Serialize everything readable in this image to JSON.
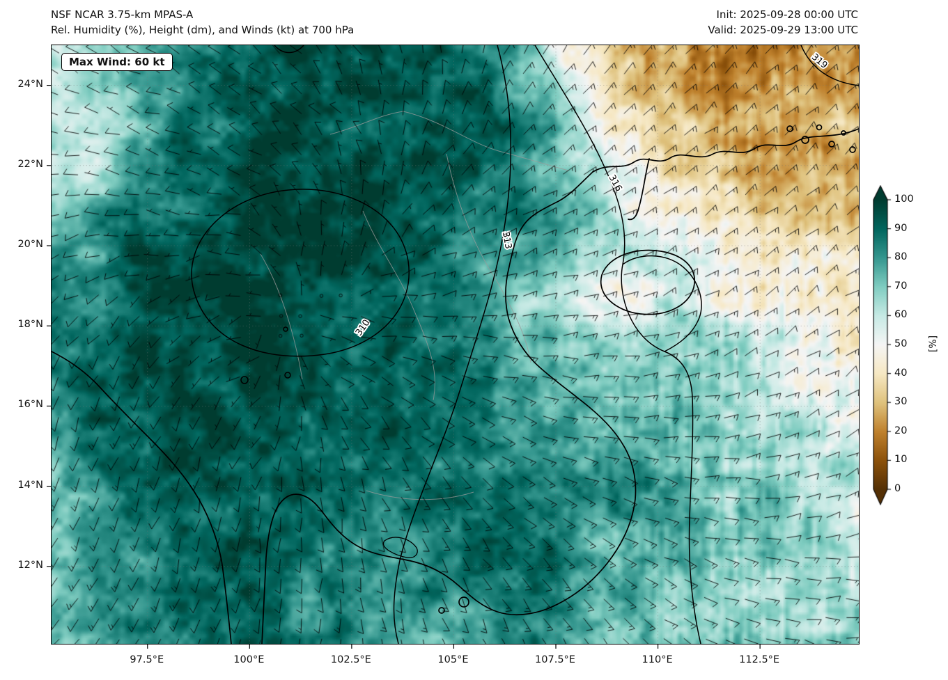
{
  "header": {
    "title_line1": "NSF NCAR 3.75-km MPAS-A",
    "title_line2": "Rel. Humidity (%), Height (dm), and Winds (kt) at 700 hPa",
    "init_label": "Init: 2025-09-28 00:00 UTC",
    "valid_label": "Valid: 2025-09-29 13:00 UTC"
  },
  "map": {
    "max_wind_label": "Max Wind: 60 kt",
    "contour_labels": [
      "310",
      "313",
      "316",
      "319"
    ]
  },
  "colorbar": {
    "label": "[%]"
  },
  "chart_data": {
    "type": "heatmap",
    "title": "NSF NCAR 3.75-km MPAS-A",
    "subtitle": "Rel. Humidity (%), Height (dm), and Winds (kt) at 700 hPa",
    "init_time": "2025-09-28 00:00 UTC",
    "valid_time": "2025-09-29 13:00 UTC",
    "level_hpa": 700,
    "max_wind_kt": 60,
    "bounds": {
      "lon_min": 95.15,
      "lon_max": 114.92,
      "lat_min": 10.07,
      "lat_max": 25.0
    },
    "x_ticks": [
      {
        "lon": 97.5,
        "label": "97.5°E"
      },
      {
        "lon": 100,
        "label": "100°E"
      },
      {
        "lon": 102.5,
        "label": "102.5°E"
      },
      {
        "lon": 105,
        "label": "105°E"
      },
      {
        "lon": 107.5,
        "label": "107.5°E"
      },
      {
        "lon": 110,
        "label": "110°E"
      },
      {
        "lon": 112.5,
        "label": "112.5°E"
      }
    ],
    "y_ticks": [
      {
        "lat": 24,
        "label": "24°N"
      },
      {
        "lat": 22,
        "label": "22°N"
      },
      {
        "lat": 20,
        "label": "20°N"
      },
      {
        "lat": 18,
        "label": "18°N"
      },
      {
        "lat": 16,
        "label": "16°N"
      },
      {
        "lat": 14,
        "label": "14°N"
      },
      {
        "lat": 12,
        "label": "12°N"
      }
    ],
    "colorbar": {
      "label": "[%]",
      "ticks": [
        100,
        90,
        80,
        70,
        60,
        50,
        40,
        30,
        20,
        10,
        0
      ],
      "range": [
        0,
        100
      ],
      "extend": "both",
      "colormap_stops": [
        [
          0.0,
          "#543005"
        ],
        [
          0.1,
          "#8c510a"
        ],
        [
          0.2,
          "#bf812d"
        ],
        [
          0.3,
          "#dfc27d"
        ],
        [
          0.4,
          "#f6e8c3"
        ],
        [
          0.5,
          "#f5f5f5"
        ],
        [
          0.6,
          "#c7eae5"
        ],
        [
          0.7,
          "#80cdc1"
        ],
        [
          0.8,
          "#35978f"
        ],
        [
          0.9,
          "#01665e"
        ],
        [
          1.0,
          "#003c30"
        ]
      ]
    },
    "height_contours_dm": [
      310,
      313,
      316,
      319
    ],
    "humidity_grid": {
      "units": "%",
      "lon_start": 95,
      "lon_step": 1,
      "lat_start": 25,
      "lat_step": -1,
      "values": [
        [
          60,
          66,
          74,
          80,
          88,
          92,
          95,
          96,
          95,
          93,
          90,
          85,
          70,
          50,
          35,
          26,
          20,
          18,
          20,
          22,
          24
        ],
        [
          55,
          60,
          70,
          82,
          90,
          94,
          96,
          96,
          95,
          94,
          92,
          88,
          75,
          55,
          38,
          28,
          22,
          20,
          22,
          25,
          28
        ],
        [
          58,
          55,
          65,
          80,
          90,
          95,
          96,
          95,
          94,
          93,
          92,
          90,
          80,
          62,
          45,
          32,
          25,
          22,
          25,
          28,
          30
        ],
        [
          65,
          60,
          70,
          85,
          92,
          96,
          96,
          95,
          94,
          92,
          90,
          88,
          82,
          70,
          55,
          40,
          30,
          26,
          28,
          30,
          32
        ],
        [
          75,
          72,
          80,
          90,
          95,
          97,
          97,
          96,
          95,
          92,
          88,
          85,
          80,
          72,
          62,
          50,
          40,
          34,
          32,
          33,
          35
        ],
        [
          82,
          80,
          88,
          94,
          97,
          98,
          98,
          97,
          95,
          92,
          88,
          82,
          75,
          68,
          60,
          55,
          48,
          43,
          40,
          38,
          38
        ],
        [
          85,
          85,
          92,
          96,
          98,
          98,
          98,
          97,
          94,
          90,
          85,
          78,
          68,
          58,
          52,
          55,
          55,
          50,
          45,
          42,
          40
        ],
        [
          88,
          88,
          94,
          97,
          98,
          98,
          97,
          95,
          92,
          88,
          84,
          78,
          70,
          60,
          55,
          60,
          62,
          58,
          52,
          48,
          45
        ],
        [
          85,
          90,
          95,
          97,
          97,
          96,
          95,
          93,
          90,
          88,
          85,
          82,
          78,
          72,
          68,
          68,
          68,
          62,
          58,
          52,
          48
        ],
        [
          80,
          88,
          93,
          95,
          95,
          94,
          93,
          92,
          90,
          88,
          86,
          84,
          82,
          78,
          72,
          70,
          70,
          66,
          62,
          56,
          52
        ],
        [
          78,
          85,
          90,
          92,
          93,
          92,
          92,
          91,
          90,
          89,
          87,
          85,
          83,
          80,
          75,
          72,
          70,
          68,
          64,
          60,
          55
        ],
        [
          75,
          82,
          88,
          90,
          91,
          91,
          91,
          90,
          90,
          89,
          88,
          86,
          84,
          82,
          80,
          76,
          72,
          70,
          66,
          62,
          58
        ],
        [
          72,
          80,
          86,
          89,
          90,
          90,
          90,
          89,
          88,
          87,
          86,
          85,
          84,
          80,
          76,
          74,
          72,
          70,
          68,
          64,
          60
        ],
        [
          70,
          78,
          84,
          88,
          89,
          89,
          88,
          87,
          85,
          84,
          82,
          83,
          84,
          80,
          74,
          72,
          70,
          68,
          66,
          64,
          62
        ],
        [
          68,
          76,
          82,
          86,
          88,
          88,
          87,
          85,
          82,
          80,
          78,
          80,
          84,
          82,
          76,
          72,
          70,
          68,
          66,
          64,
          62
        ],
        [
          66,
          74,
          80,
          84,
          86,
          87,
          86,
          84,
          80,
          78,
          76,
          78,
          82,
          82,
          78,
          74,
          72,
          70,
          68,
          66,
          64
        ]
      ]
    },
    "wind_grid": {
      "units": "kt",
      "lon_start": 95,
      "lon_step": 2.5,
      "lat_start": 25,
      "lat_step": -2.5,
      "dir_from_deg": [
        [
          300,
          300,
          310,
          330,
          10,
          30,
          40,
          45,
          45
        ],
        [
          280,
          290,
          300,
          340,
          30,
          50,
          50,
          50,
          48
        ],
        [
          250,
          260,
          290,
          20,
          60,
          70,
          60,
          55,
          50
        ],
        [
          210,
          220,
          250,
          120,
          100,
          90,
          75,
          60,
          55
        ],
        [
          200,
          200,
          210,
          160,
          130,
          110,
          95,
          75,
          65
        ],
        [
          210,
          200,
          190,
          170,
          150,
          130,
          115,
          95,
          80
        ],
        [
          220,
          210,
          200,
          180,
          160,
          150,
          130,
          110,
          95
        ]
      ],
      "speed_kt": [
        [
          12,
          10,
          10,
          8,
          10,
          12,
          15,
          15,
          15
        ],
        [
          10,
          8,
          8,
          8,
          10,
          15,
          15,
          15,
          12
        ],
        [
          10,
          8,
          6,
          8,
          12,
          15,
          15,
          15,
          12
        ],
        [
          10,
          8,
          5,
          8,
          15,
          15,
          15,
          12,
          12
        ],
        [
          12,
          10,
          8,
          10,
          12,
          15,
          15,
          12,
          12
        ],
        [
          15,
          12,
          10,
          10,
          12,
          15,
          15,
          12,
          12
        ],
        [
          15,
          15,
          12,
          12,
          12,
          15,
          15,
          12,
          12
        ]
      ]
    }
  }
}
